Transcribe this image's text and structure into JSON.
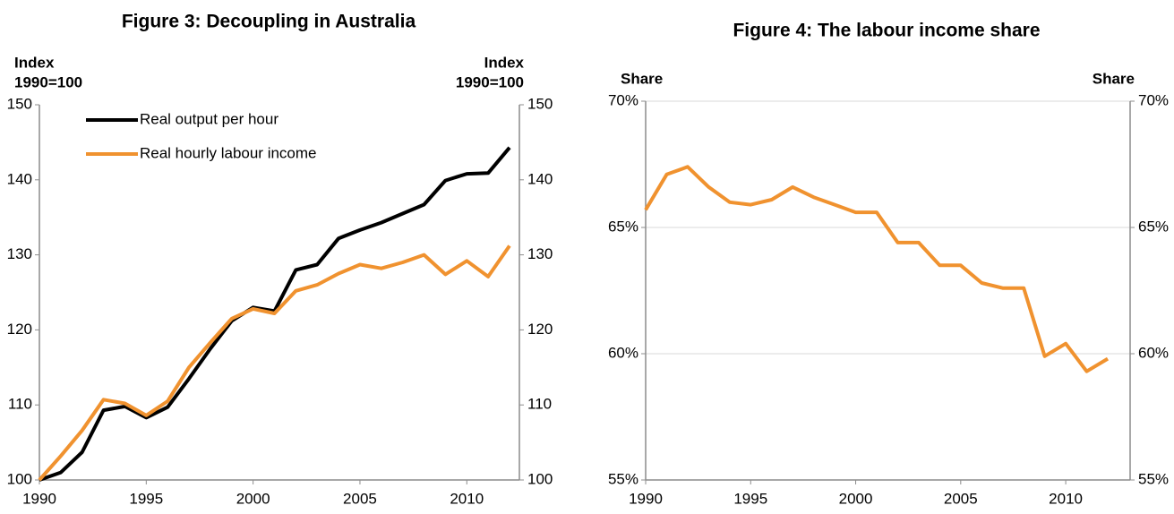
{
  "chart_data": [
    {
      "type": "line",
      "title": "Figure 3: Decoupling in Australia",
      "y_label": [
        "Index",
        "1990=100"
      ],
      "y2_label": [
        "Index",
        "1990=100"
      ],
      "x": [
        1990,
        1991,
        1992,
        1993,
        1994,
        1995,
        1996,
        1997,
        1998,
        1999,
        2000,
        2001,
        2002,
        2003,
        2004,
        2005,
        2006,
        2007,
        2008,
        2009,
        2010,
        2011,
        2012
      ],
      "xlim": [
        1990,
        2012
      ],
      "xticks": [
        1990,
        1995,
        2000,
        2005,
        2010
      ],
      "ylim": [
        100,
        150
      ],
      "yticks": [
        100,
        110,
        120,
        130,
        140,
        150
      ],
      "y2lim": [
        100,
        150
      ],
      "y2ticks": [
        100,
        110,
        120,
        130,
        140,
        150
      ],
      "grid": false,
      "legend": "upper left",
      "series": [
        {
          "name": "Real output per hour",
          "color": "#000000",
          "values": [
            100,
            101,
            103.7,
            109.3,
            109.8,
            108.3,
            109.7,
            113.5,
            117.5,
            121.2,
            123,
            122.5,
            128,
            128.7,
            132.2,
            133.3,
            134.3,
            135.5,
            136.7,
            139.9,
            140.8,
            140.9,
            144.3
          ]
        },
        {
          "name": "Real hourly labour income",
          "color": "#f0922f",
          "values": [
            100,
            103.2,
            106.6,
            110.7,
            110.2,
            108.6,
            110.5,
            115,
            118.3,
            121.5,
            122.8,
            122.2,
            125.2,
            126,
            127.5,
            128.7,
            128.2,
            129,
            130,
            127.4,
            129.2,
            127.1,
            131.2
          ]
        }
      ]
    },
    {
      "type": "line",
      "title": "Figure 4: The labour income share",
      "y_label": [
        "Share"
      ],
      "y2_label": [
        "Share"
      ],
      "x": [
        1990,
        1991,
        1992,
        1993,
        1994,
        1995,
        1996,
        1997,
        1998,
        1999,
        2000,
        2001,
        2002,
        2003,
        2004,
        2005,
        2006,
        2007,
        2008,
        2009,
        2010,
        2011,
        2012
      ],
      "xlim": [
        1990,
        2012
      ],
      "xticks": [
        1990,
        1995,
        2000,
        2005,
        2010
      ],
      "ylim": [
        55,
        70
      ],
      "yticks": [
        {
          "value": 55,
          "label": "55%"
        },
        {
          "value": 60,
          "label": "60%"
        },
        {
          "value": 65,
          "label": "65%"
        },
        {
          "value": 70,
          "label": "70%"
        }
      ],
      "y2lim": [
        55,
        70
      ],
      "y2ticks": [
        {
          "value": 55,
          "label": "55%"
        },
        {
          "value": 60,
          "label": "60%"
        },
        {
          "value": 65,
          "label": "65%"
        },
        {
          "value": 70,
          "label": "70%"
        }
      ],
      "grid": true,
      "series": [
        {
          "color": "#f0922f",
          "values": [
            65.7,
            67.1,
            67.4,
            66.6,
            66,
            65.9,
            66.1,
            66.6,
            66.2,
            65.9,
            65.6,
            65.6,
            64.4,
            64.4,
            63.5,
            63.5,
            62.8,
            62.6,
            62.6,
            59.9,
            60.4,
            59.3,
            59.8
          ]
        }
      ]
    }
  ]
}
